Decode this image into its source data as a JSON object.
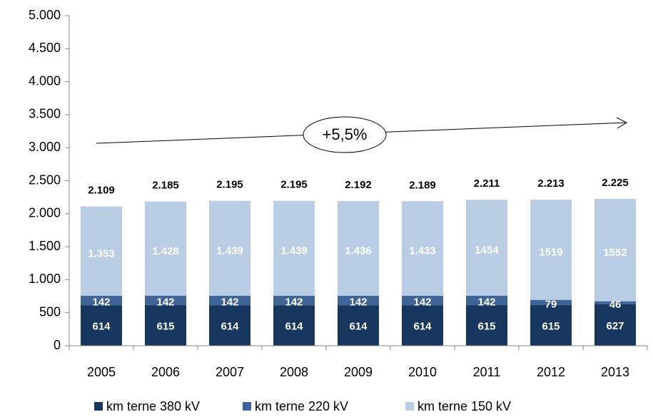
{
  "chart_data": {
    "type": "stacked-bar",
    "categories": [
      "2005",
      "2006",
      "2007",
      "2008",
      "2009",
      "2010",
      "2011",
      "2012",
      "2013"
    ],
    "series": [
      {
        "name": "km terne 380 kV",
        "color": "#17375e",
        "values": [
          614,
          615,
          614,
          614,
          614,
          614,
          615,
          615,
          627
        ]
      },
      {
        "name": "km terne 220 kV",
        "color": "#3e6498",
        "values": [
          142,
          142,
          142,
          142,
          142,
          142,
          142,
          79,
          46
        ]
      },
      {
        "name": "km terne 150 kV",
        "color": "#b9cde5",
        "values": [
          1353,
          1428,
          1439,
          1439,
          1436,
          1433,
          1454,
          1519,
          1552
        ],
        "value_labels": [
          "1.353",
          "1.428",
          "1.439",
          "1.439",
          "1.436",
          "1.433",
          "1454",
          "1519",
          "1552"
        ]
      }
    ],
    "totals": {
      "values": [
        2109,
        2185,
        2195,
        2195,
        2192,
        2189,
        2211,
        2213,
        2225
      ],
      "value_labels": [
        "2.109",
        "2.185",
        "2.195",
        "2.195",
        "2.192",
        "2.189",
        "2.211",
        "2.213",
        "2.225"
      ]
    },
    "annotation": "+5,5%",
    "ylim": [
      0,
      5000
    ],
    "yticks": [
      0,
      500,
      {
        "value": 1000,
        "label": "1.000"
      },
      {
        "value": 1500,
        "label": "1.500"
      },
      {
        "value": 2000,
        "label": "2.000"
      },
      {
        "value": 2500,
        "label": "2.500"
      },
      {
        "value": 3000,
        "label": "3.000"
      },
      {
        "value": 3500,
        "label": "3.500"
      },
      {
        "value": 4000,
        "label": "4.000"
      },
      {
        "value": 4500,
        "label": "4.500"
      },
      {
        "value": 5000,
        "label": "5.000"
      }
    ],
    "grid": false,
    "legend": "bottom"
  }
}
